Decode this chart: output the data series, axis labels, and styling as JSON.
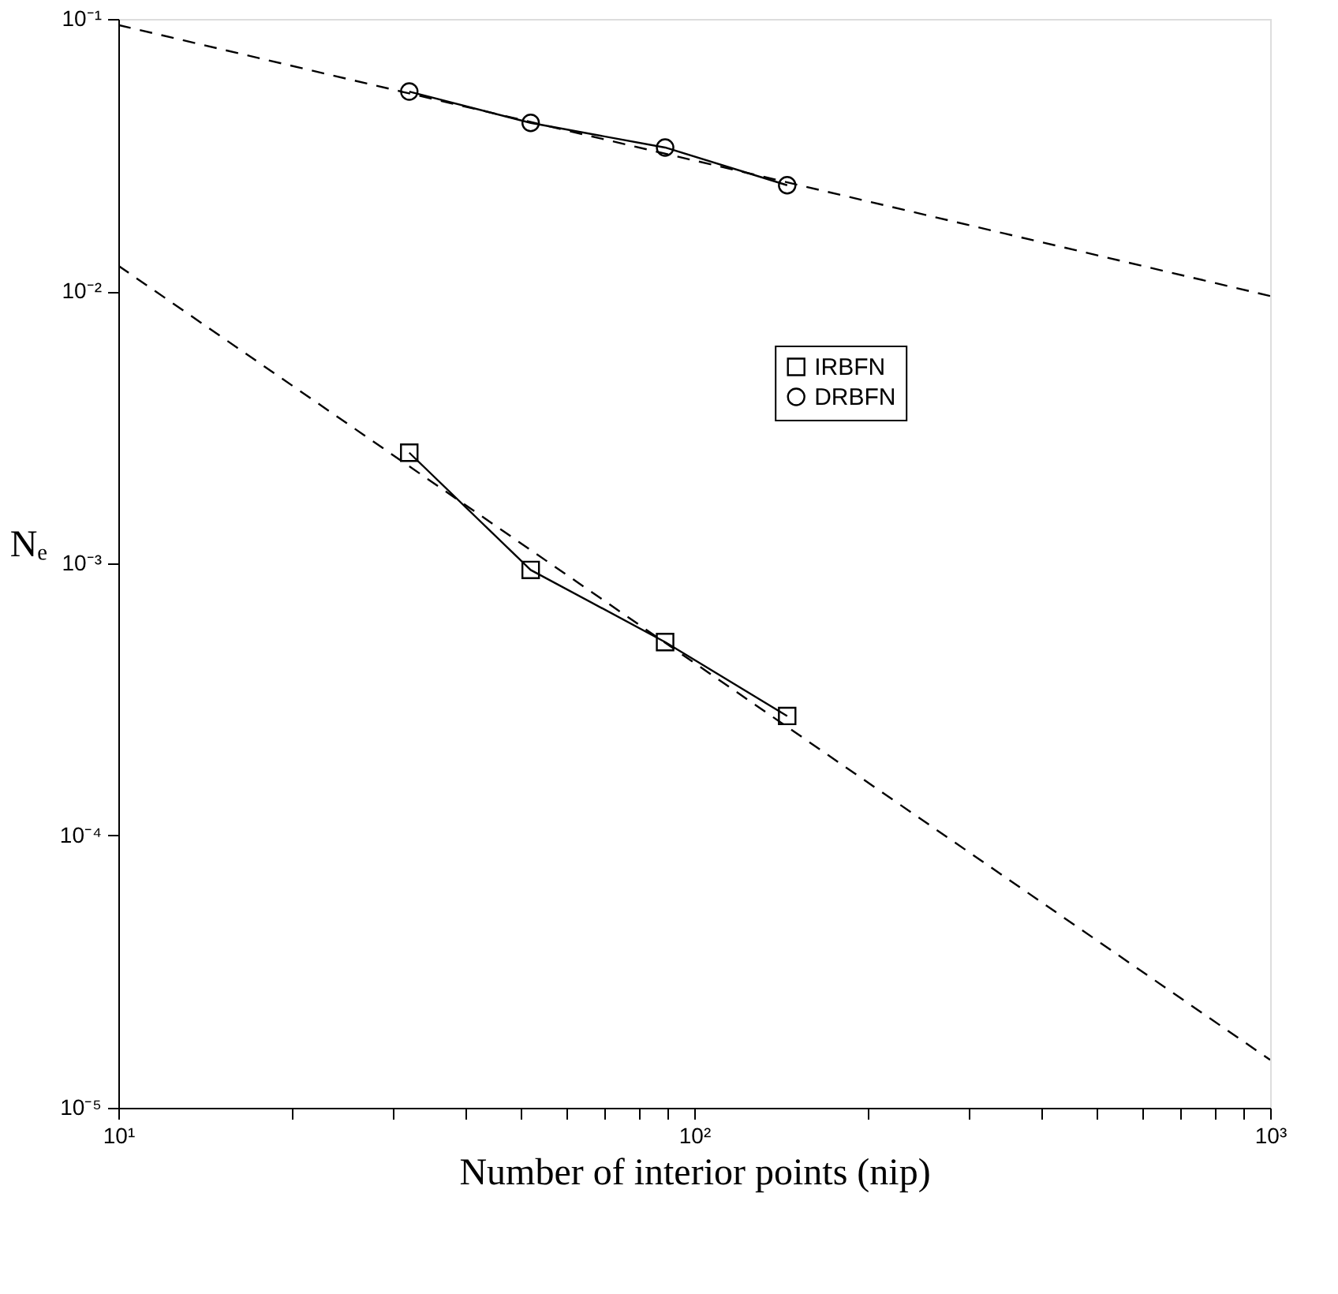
{
  "chart_data": {
    "type": "line",
    "xlabel": "Number of interior points (nip)",
    "ylabel": "Nₑ",
    "log": "xy",
    "grid": false,
    "legend": "top right",
    "xlim": [
      10,
      1000
    ],
    "ylim": [
      1e-05,
      0.1
    ],
    "xticks": [
      {
        "value": 10,
        "label": "10¹"
      },
      {
        "value": 20,
        "label": null
      },
      {
        "value": 30,
        "label": null
      },
      {
        "value": 40,
        "label": null
      },
      {
        "value": 50,
        "label": null
      },
      {
        "value": 60,
        "label": null
      },
      {
        "value": 70,
        "label": null
      },
      {
        "value": 80,
        "label": null
      },
      {
        "value": 90,
        "label": null
      },
      {
        "value": 100,
        "label": "10²"
      },
      {
        "value": 200,
        "label": null
      },
      {
        "value": 300,
        "label": null
      },
      {
        "value": 400,
        "label": null
      },
      {
        "value": 500,
        "label": null
      },
      {
        "value": 600,
        "label": null
      },
      {
        "value": 700,
        "label": null
      },
      {
        "value": 800,
        "label": null
      },
      {
        "value": 900,
        "label": null
      },
      {
        "value": 1000,
        "label": "10³"
      }
    ],
    "yticks": [
      {
        "value": 1e-05,
        "label": "10⁻⁵"
      },
      {
        "value": 0.0001,
        "label": "10⁻⁴"
      },
      {
        "value": 0.001,
        "label": "10⁻³"
      },
      {
        "value": 0.01,
        "label": "10⁻²"
      },
      {
        "value": 0.1,
        "label": "10⁻¹"
      }
    ],
    "series": [
      {
        "name": "IRBFN",
        "color": "#000000",
        "marker": "square",
        "line_style": "solid",
        "x": [
          32,
          52,
          89,
          145
        ],
        "values": [
          0.00255,
          0.000946,
          0.000514,
          0.000275
        ]
      },
      {
        "name": "DRBFN",
        "color": "#000000",
        "marker": "circle",
        "line_style": "solid",
        "x": [
          32,
          52,
          89,
          145
        ],
        "values": [
          0.0541,
          0.0415,
          0.0337,
          0.0245
        ]
      },
      {
        "type": "line",
        "color": "#000000",
        "marker": "none",
        "line_style": "dashed",
        "x": [
          10,
          1000
        ],
        "values": [
          0.0124,
          1.5e-05
        ]
      },
      {
        "type": "line",
        "color": "#000000",
        "marker": "none",
        "line_style": "dashed",
        "x": [
          10,
          1000
        ],
        "values": [
          0.095,
          0.0096
        ]
      }
    ]
  }
}
